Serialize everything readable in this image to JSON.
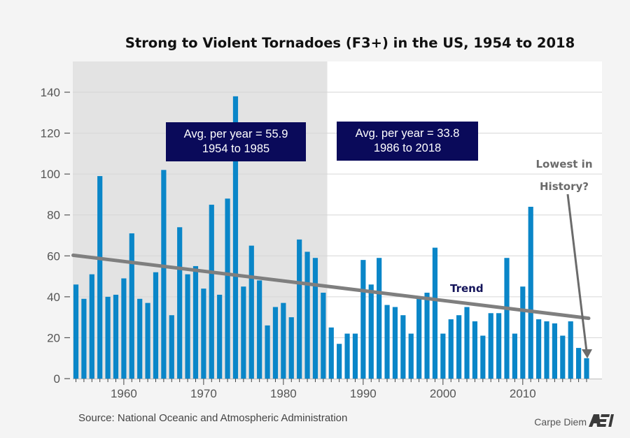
{
  "chart_data": {
    "type": "bar",
    "title": "Strong to Violent Tornadoes (F3+) in the US, 1954 to 2018",
    "xlabel": "",
    "ylabel": "",
    "ylim": [
      0,
      150
    ],
    "yticks": [
      0,
      20,
      40,
      60,
      80,
      100,
      120,
      140
    ],
    "xticks": [
      1960,
      1970,
      1980,
      1990,
      2000,
      2010
    ],
    "grid": true,
    "x": [
      1954,
      1955,
      1956,
      1957,
      1958,
      1959,
      1960,
      1961,
      1962,
      1963,
      1964,
      1965,
      1966,
      1967,
      1968,
      1969,
      1970,
      1971,
      1972,
      1973,
      1974,
      1975,
      1976,
      1977,
      1978,
      1979,
      1980,
      1981,
      1982,
      1983,
      1984,
      1985,
      1986,
      1987,
      1988,
      1989,
      1990,
      1991,
      1992,
      1993,
      1994,
      1995,
      1996,
      1997,
      1998,
      1999,
      2000,
      2001,
      2002,
      2003,
      2004,
      2005,
      2006,
      2007,
      2008,
      2009,
      2010,
      2011,
      2012,
      2013,
      2014,
      2015,
      2016,
      2017,
      2018
    ],
    "values": [
      46,
      39,
      51,
      99,
      40,
      41,
      49,
      71,
      39,
      37,
      52,
      102,
      31,
      74,
      51,
      55,
      44,
      85,
      41,
      88,
      138,
      45,
      65,
      48,
      26,
      35,
      37,
      30,
      68,
      62,
      59,
      42,
      25,
      17,
      22,
      22,
      58,
      46,
      59,
      36,
      35,
      31,
      22,
      39,
      42,
      64,
      22,
      29,
      31,
      35,
      28,
      21,
      32,
      32,
      59,
      22,
      45,
      84,
      29,
      28,
      27,
      21,
      28,
      15,
      10
    ],
    "bar_color": "#0a86c8",
    "shaded_period": {
      "from": 1954,
      "to": 1985,
      "color": "#e3e3e3"
    },
    "trend": {
      "label": "Trend",
      "start": [
        1954,
        60.3
      ],
      "end": [
        2018,
        29.5
      ],
      "color": "#7f7f7f"
    },
    "annotations": [
      {
        "lines": [
          "Avg. per year = 55.9",
          "1954 to 1985"
        ],
        "period": "1954-1985",
        "value": 55.9,
        "bg": "#0a0a5a"
      },
      {
        "lines": [
          "Avg. per year = 33.8",
          "1986 to 2018"
        ],
        "period": "1986-2018",
        "value": 33.8,
        "bg": "#0a0a5a"
      }
    ],
    "callout": {
      "lines": [
        "Lowest in",
        "History?"
      ],
      "points_to": 2018
    },
    "source": "Source: National Oceanic and Atmospheric Administration",
    "branding": {
      "text": "Carpe Diem",
      "logo": "AEI"
    }
  }
}
